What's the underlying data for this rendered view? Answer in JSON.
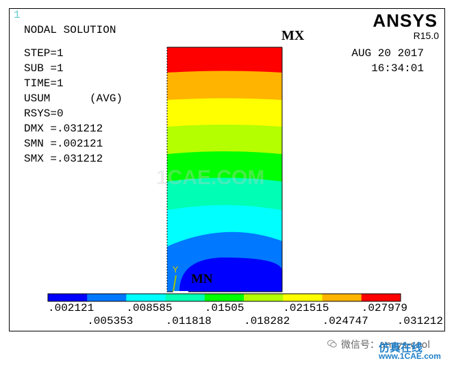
{
  "window": {
    "number": "1"
  },
  "header": {
    "title": "NODAL SOLUTION",
    "info": [
      "STEP=1",
      "SUB =1",
      "TIME=1",
      "USUM      (AVG)",
      "RSYS=0",
      "DMX =.031212",
      "SMN =.002121",
      "SMX =.031212"
    ]
  },
  "branding": {
    "logo": "ANSYS",
    "release": "R15.0"
  },
  "timestamp": {
    "date": "AUG 20 2017",
    "time": "16:34:01"
  },
  "markers": {
    "max": "MX",
    "min": "MN",
    "axis_y": "Y"
  },
  "watermark": "1CAE.COM",
  "legend": {
    "colors": [
      "#0000ff",
      "#0078ff",
      "#00ffff",
      "#00ffb4",
      "#00ff00",
      "#b4ff00",
      "#ffff00",
      "#ffb400",
      "#ff0000"
    ],
    "labels_top": [
      ".002121",
      ".008585",
      ".01505",
      ".021515",
      ".027979"
    ],
    "labels_bottom": [
      ".005353",
      ".011818",
      ".018282",
      ".024747",
      ".031212"
    ]
  },
  "footer": {
    "wechat": "微信号：ansys-cool",
    "brand": "仿真在线",
    "url": "www.1CAE.com"
  }
}
